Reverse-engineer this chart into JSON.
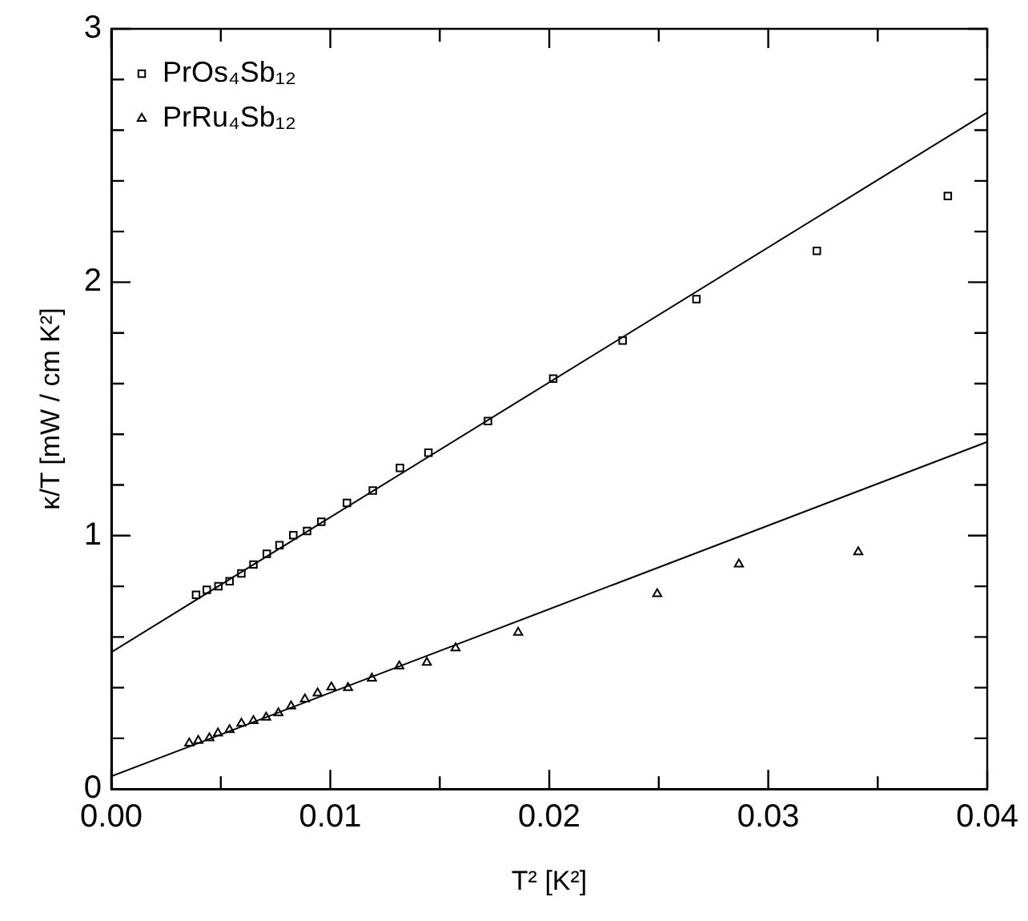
{
  "chart_data": {
    "type": "scatter",
    "xlabel": "T² [K²]",
    "ylabel": "κ/T [mW / cm K²]",
    "xlim": [
      0,
      0.04
    ],
    "ylim": [
      0,
      3
    ],
    "xticks": [
      {
        "value": 0,
        "label": "0.00"
      },
      {
        "value": 0.005,
        "label": null
      },
      {
        "value": 0.01,
        "label": "0.01"
      },
      {
        "value": 0.015,
        "label": null
      },
      {
        "value": 0.02,
        "label": "0.02"
      },
      {
        "value": 0.025,
        "label": null
      },
      {
        "value": 0.03,
        "label": "0.03"
      },
      {
        "value": 0.035,
        "label": null
      },
      {
        "value": 0.04,
        "label": "0.04"
      }
    ],
    "yticks": [
      0,
      {
        "value": 0.2,
        "label": null
      },
      {
        "value": 0.4,
        "label": null
      },
      {
        "value": 0.6,
        "label": null
      },
      {
        "value": 0.8,
        "label": null
      },
      1,
      {
        "value": 1.2,
        "label": null
      },
      {
        "value": 1.4,
        "label": null
      },
      {
        "value": 1.6,
        "label": null
      },
      {
        "value": 1.8,
        "label": null
      },
      2,
      {
        "value": 2.2,
        "label": null
      },
      {
        "value": 2.4,
        "label": null
      },
      {
        "value": 2.6,
        "label": null
      },
      {
        "value": 2.8,
        "label": null
      },
      3
    ],
    "grid": false,
    "legend": "top left",
    "series": [
      {
        "name": "PrOs₄Sb₁₂",
        "marker": "square",
        "color": "#000000",
        "x": [
          0.00387,
          0.00436,
          0.00489,
          0.0054,
          0.00594,
          0.00649,
          0.0071,
          0.00768,
          0.00831,
          0.00894,
          0.00959,
          0.01076,
          0.01194,
          0.01318,
          0.01448,
          0.0172,
          0.02018,
          0.02335,
          0.02672,
          0.03222,
          0.0382
        ],
        "values": [
          0.766,
          0.786,
          0.8,
          0.82,
          0.851,
          0.886,
          0.928,
          0.962,
          1.002,
          1.018,
          1.055,
          1.129,
          1.178,
          1.267,
          1.327,
          1.452,
          1.62,
          1.77,
          1.933,
          2.124,
          2.34
        ]
      },
      {
        "name": "PrRu₄Sb₁₂",
        "marker": "triangle",
        "color": "#000000",
        "x": [
          0.00356,
          0.00397,
          0.00448,
          0.00487,
          0.0054,
          0.00594,
          0.00649,
          0.00707,
          0.00763,
          0.00821,
          0.00884,
          0.00942,
          0.01005,
          0.01081,
          0.0119,
          0.01315,
          0.01441,
          0.01572,
          0.01858,
          0.02493,
          0.02866,
          0.03411
        ],
        "values": [
          0.181,
          0.191,
          0.201,
          0.22,
          0.234,
          0.259,
          0.269,
          0.283,
          0.3,
          0.327,
          0.355,
          0.378,
          0.402,
          0.4,
          0.437,
          0.485,
          0.499,
          0.556,
          0.618,
          0.77,
          0.887,
          0.935
        ]
      },
      {
        "type": "line",
        "marker": "none",
        "line_style": "solid",
        "color": "#000000",
        "x": [
          0,
          0.04
        ],
        "values": [
          0.54,
          2.67
        ]
      },
      {
        "type": "line",
        "marker": "none",
        "line_style": "solid",
        "color": "#000000",
        "x": [
          0,
          0.04
        ],
        "values": [
          0.05,
          1.37
        ]
      }
    ]
  }
}
